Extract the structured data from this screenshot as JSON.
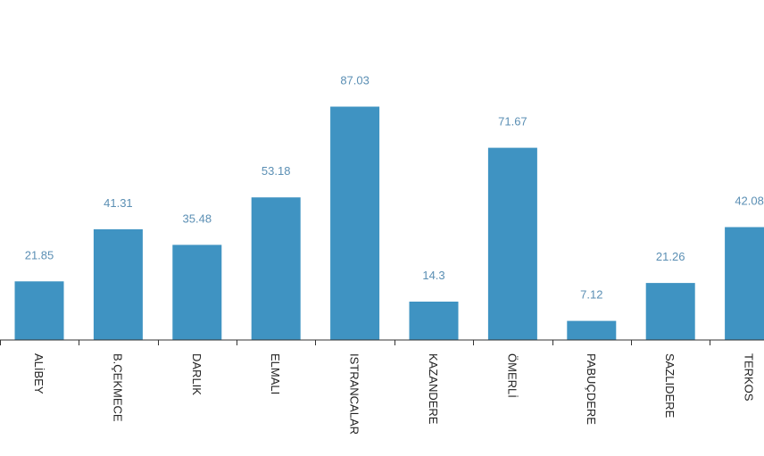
{
  "chart_data": {
    "type": "bar",
    "categories": [
      "ALİBEY",
      "B.ÇEKMECE",
      "DARLIK",
      "ELMALI",
      "ISTRANCALAR",
      "KAZANDERE",
      "ÖMERLİ",
      "PABUÇDERE",
      "SAZLIDERE",
      "TERKOS"
    ],
    "values": [
      21.85,
      41.31,
      35.48,
      53.18,
      87.03,
      14.3,
      71.67,
      7.12,
      21.26,
      42.08
    ],
    "value_labels": [
      "21.85",
      "41.31",
      "35.48",
      "53.18",
      "87.03",
      "14.3",
      "71.67",
      "7.12",
      "21.26",
      "42.08"
    ],
    "ylim": [
      0,
      100
    ],
    "grid": false,
    "legend": "none",
    "colors": {
      "bar": "#3f93c2",
      "value_label": "#5b8fb4"
    }
  }
}
